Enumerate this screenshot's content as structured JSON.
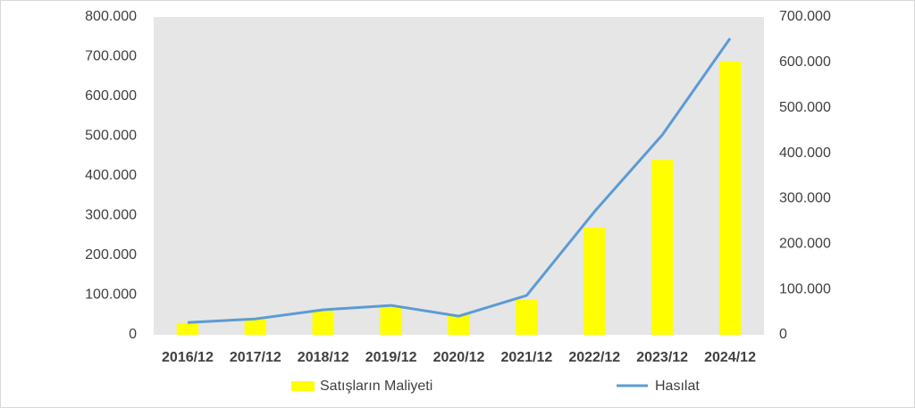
{
  "chart_data": {
    "type": "bar-line",
    "categories": [
      "2016/12",
      "2017/12",
      "2018/12",
      "2019/12",
      "2020/12",
      "2021/12",
      "2022/12",
      "2023/12",
      "2024/12"
    ],
    "series": [
      {
        "name": "Satışların Maliyeti",
        "type": "bar",
        "color": "#ffff00",
        "axis": "y2",
        "values": [
          26000,
          37000,
          53000,
          63000,
          45000,
          77000,
          236000,
          385000,
          602000
        ]
      },
      {
        "name": "Hasılat",
        "type": "line",
        "color": "#5b9bd5",
        "values": [
          31000,
          40000,
          63000,
          74000,
          47000,
          99000,
          310000,
          503000,
          746000
        ]
      }
    ],
    "ylim": [
      0,
      800000
    ],
    "yticks": [
      0,
      {
        "value": 100000,
        "label": "100.000"
      },
      {
        "value": 200000,
        "label": "200.000"
      },
      {
        "value": 300000,
        "label": "300.000"
      },
      {
        "value": 400000,
        "label": "400.000"
      },
      {
        "value": 500000,
        "label": "500.000"
      },
      {
        "value": 600000,
        "label": "600.000"
      },
      {
        "value": 700000,
        "label": "700.000"
      },
      {
        "value": 800000,
        "label": "800.000"
      }
    ],
    "y2lim": [
      0,
      700000
    ],
    "y2ticks": [
      0,
      {
        "value": 100000,
        "label": "100.000"
      },
      {
        "value": 200000,
        "label": "200.000"
      },
      {
        "value": 300000,
        "label": "300.000"
      },
      {
        "value": 400000,
        "label": "400.000"
      },
      {
        "value": 500000,
        "label": "500.000"
      },
      {
        "value": 600000,
        "label": "600.000"
      },
      {
        "value": 700000,
        "label": "700.000"
      }
    ],
    "plot_background": "#e6e6e6"
  }
}
